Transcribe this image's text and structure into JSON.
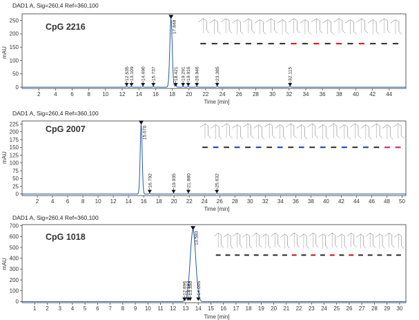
{
  "chart_data": [
    {
      "type": "line",
      "header": "DAD1 A, Sig=260,4 Ref=360,100",
      "sample_name": "CpG 2216",
      "ylabel": "mAU",
      "xlabel": "Time [min]",
      "xlim": [
        0,
        46
      ],
      "ylim": [
        -5,
        275
      ],
      "x_ticks": [
        2,
        4,
        6,
        8,
        10,
        12,
        14,
        16,
        18,
        20,
        22,
        24,
        26,
        28,
        30,
        32,
        34,
        36,
        38,
        40,
        42,
        44
      ],
      "y_ticks": [
        0,
        50,
        100,
        150,
        200,
        250
      ],
      "peaks": [
        {
          "time": 12.535,
          "height": 2,
          "label": "12.535",
          "marker": "down"
        },
        {
          "time": 13.109,
          "height": 2,
          "label": "13.109",
          "marker": "down"
        },
        {
          "time": 14.49,
          "height": 2,
          "label": "14.490",
          "marker": "down"
        },
        {
          "time": 15.737,
          "height": 2,
          "label": "15.737",
          "marker": "down"
        },
        {
          "time": 17.848,
          "height": 258,
          "label": "17.848",
          "marker": "up"
        },
        {
          "time": 18.421,
          "height": 8,
          "label": "18.421",
          "marker": "down"
        },
        {
          "time": 19.291,
          "height": 2,
          "label": "19.291",
          "marker": "down"
        },
        {
          "time": 19.916,
          "height": 2,
          "label": "19.916",
          "marker": "down"
        },
        {
          "time": 20.946,
          "height": 2,
          "label": "20.946",
          "marker": "down"
        },
        {
          "time": 23.385,
          "height": 2,
          "label": "23.385",
          "marker": "down"
        },
        {
          "time": 32.115,
          "height": 2,
          "label": "32.115",
          "marker": "down"
        }
      ]
    },
    {
      "type": "line",
      "header": "DAD1 A, Sig=260,4 Ref=360,100",
      "sample_name": "CpG 2007",
      "ylabel": "mAU",
      "xlabel": "Time [min]",
      "xlim": [
        0,
        50.5
      ],
      "ylim": [
        -5,
        235
      ],
      "x_ticks": [
        2,
        4,
        6,
        8,
        10,
        12,
        14,
        16,
        18,
        20,
        22,
        24,
        26,
        28,
        30,
        32,
        34,
        36,
        38,
        40,
        42,
        44,
        46,
        48,
        50
      ],
      "y_ticks": [
        0,
        25,
        50,
        75,
        100,
        125,
        150,
        175,
        200,
        225
      ],
      "peaks": [
        {
          "time": 15.67,
          "height": 225,
          "label": "15.670",
          "marker": "up"
        },
        {
          "time": 16.792,
          "height": 2,
          "label": "16.792",
          "marker": "down"
        },
        {
          "time": 19.935,
          "height": 2,
          "label": "19.935",
          "marker": "down"
        },
        {
          "time": 21.88,
          "height": 2,
          "label": "21.880",
          "marker": "down"
        },
        {
          "time": 25.632,
          "height": 2,
          "label": "25.632",
          "marker": "down"
        }
      ]
    },
    {
      "type": "line",
      "header": "DAD1 A, Sig=260,4 Ref=360,100",
      "sample_name": "CpG 1018",
      "ylabel": "mAU",
      "xlabel": "Time [min]",
      "xlim": [
        0,
        30.5
      ],
      "ylim": [
        -10,
        710
      ],
      "x_ticks": [
        1,
        2,
        3,
        4,
        5,
        6,
        7,
        8,
        9,
        10,
        11,
        12,
        13,
        14,
        15,
        16,
        17,
        18,
        19,
        20,
        21,
        22,
        23,
        24,
        25,
        26,
        27,
        28,
        29,
        30
      ],
      "y_ticks": [
        0,
        100,
        200,
        300,
        400,
        500,
        600,
        700
      ],
      "peaks": [
        {
          "time": 12.896,
          "height": 5,
          "label": "12.896",
          "marker": "down"
        },
        {
          "time": 13.193,
          "height": 10,
          "label": "13.193",
          "marker": "down"
        },
        {
          "time": 13.35,
          "height": 15,
          "label": "13.350",
          "marker": "down"
        },
        {
          "time": 13.583,
          "height": 665,
          "label": "13.583",
          "marker": "up"
        },
        {
          "time": 14.005,
          "height": 10,
          "label": "14.005",
          "marker": "down"
        }
      ]
    }
  ],
  "colors": {
    "trace": "#1f57a8",
    "sample_label": "#6b2d8f",
    "axis": "#333333",
    "baseline_marker": "#111111",
    "base_red": "#d42020",
    "base_blue": "#2743c8",
    "base_pink": "#d0338f"
  }
}
